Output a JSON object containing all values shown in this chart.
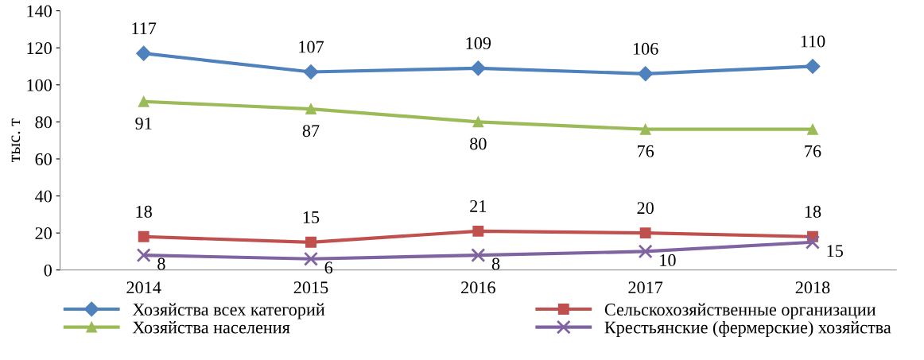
{
  "chart_data": {
    "type": "line",
    "ylabel": "тыс. т",
    "categories": [
      "2014",
      "2015",
      "2016",
      "2017",
      "2018"
    ],
    "series": [
      {
        "name": "Хозяйства всех категорий",
        "color": "#4f81bd",
        "marker": "diamond",
        "values": [
          117,
          107,
          109,
          106,
          110
        ]
      },
      {
        "name": "Хозяйства населения",
        "color": "#9bbb59",
        "marker": "triangle",
        "values": [
          91,
          87,
          80,
          76,
          76
        ]
      },
      {
        "name": "Сельскохозяйственные организации",
        "color": "#c0504d",
        "marker": "square",
        "values": [
          18,
          15,
          21,
          20,
          18
        ]
      },
      {
        "name": "Крестьянские (фермерские) хозяйства",
        "color": "#8064a2",
        "marker": "cross",
        "values": [
          8,
          6,
          8,
          10,
          15
        ]
      }
    ],
    "ylim": [
      0,
      140
    ],
    "yticks": [
      0,
      20,
      40,
      60,
      80,
      100,
      120,
      140
    ],
    "grid": false,
    "legend": "bottom",
    "data_labels": true
  }
}
